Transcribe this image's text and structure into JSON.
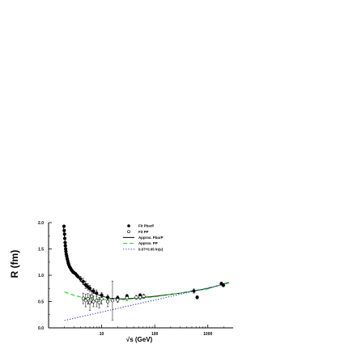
{
  "chart_data": {
    "type": "scatter",
    "title": "",
    "xlabel": "√s  (GeV)",
    "ylabel": "R (fm)",
    "x_scale": "log",
    "xlim": [
      1,
      3000
    ],
    "ylim": [
      0.0,
      2.0
    ],
    "x_ticks": [
      {
        "v": 10,
        "label": "10"
      },
      {
        "v": 100,
        "label": "100"
      },
      {
        "v": 1000,
        "label": "1000"
      }
    ],
    "y_ticks": [
      {
        "v": 0.0,
        "label": "0.0"
      },
      {
        "v": 0.5,
        "label": "0.5"
      },
      {
        "v": 1.0,
        "label": "1.0"
      },
      {
        "v": 1.5,
        "label": "1.5"
      },
      {
        "v": 2.0,
        "label": "2.0"
      }
    ],
    "grid": false,
    "legend_position": "top-right",
    "series": [
      {
        "name": "Fit PbarP",
        "kind": "points",
        "marker": "filled-circle",
        "color": "#000000",
        "points": [
          {
            "x": 1.95,
            "y": 1.93,
            "err": 0
          },
          {
            "x": 1.97,
            "y": 1.85,
            "err": 0
          },
          {
            "x": 2.0,
            "y": 1.78,
            "err": 0
          },
          {
            "x": 2.02,
            "y": 1.7,
            "err": 0
          },
          {
            "x": 2.05,
            "y": 1.62,
            "err": 0
          },
          {
            "x": 2.07,
            "y": 1.56,
            "err": 0
          },
          {
            "x": 2.1,
            "y": 1.5,
            "err": 0
          },
          {
            "x": 2.12,
            "y": 1.45,
            "err": 0
          },
          {
            "x": 2.15,
            "y": 1.4,
            "err": 0
          },
          {
            "x": 2.2,
            "y": 1.36,
            "err": 0
          },
          {
            "x": 2.25,
            "y": 1.31,
            "err": 0
          },
          {
            "x": 2.3,
            "y": 1.27,
            "err": 0
          },
          {
            "x": 2.35,
            "y": 1.23,
            "err": 0
          },
          {
            "x": 2.4,
            "y": 1.2,
            "err": 0
          },
          {
            "x": 2.5,
            "y": 1.16,
            "err": 0
          },
          {
            "x": 2.6,
            "y": 1.13,
            "err": 0
          },
          {
            "x": 2.7,
            "y": 1.1,
            "err": 0
          },
          {
            "x": 2.8,
            "y": 1.08,
            "err": 0
          },
          {
            "x": 2.9,
            "y": 1.06,
            "err": 0
          },
          {
            "x": 3.0,
            "y": 1.05,
            "err": 0
          },
          {
            "x": 3.2,
            "y": 1.03,
            "err": 0
          },
          {
            "x": 3.4,
            "y": 1.0,
            "err": 0
          },
          {
            "x": 3.6,
            "y": 0.97,
            "err": 0
          },
          {
            "x": 4.0,
            "y": 0.93,
            "err": 0.05
          },
          {
            "x": 4.5,
            "y": 0.88,
            "err": 0.06
          },
          {
            "x": 5.0,
            "y": 0.82,
            "err": 0.07
          },
          {
            "x": 5.5,
            "y": 0.78,
            "err": 0.06
          },
          {
            "x": 6.0,
            "y": 0.75,
            "err": 0.06
          },
          {
            "x": 7.0,
            "y": 0.7,
            "err": 0.05
          },
          {
            "x": 8.0,
            "y": 0.66,
            "err": 0.06
          },
          {
            "x": 10.0,
            "y": 0.62,
            "err": 0.05
          },
          {
            "x": 13.0,
            "y": 0.58,
            "err": 0.05
          },
          {
            "x": 20.0,
            "y": 0.57,
            "err": 0.04
          },
          {
            "x": 30.0,
            "y": 0.6,
            "err": 0.04
          },
          {
            "x": 53.0,
            "y": 0.62,
            "err": 0.03
          },
          {
            "x": 546.0,
            "y": 0.7,
            "err": 0.04
          },
          {
            "x": 630.0,
            "y": 0.58,
            "err": 0.03
          },
          {
            "x": 1800.0,
            "y": 0.84,
            "err": 0.03
          },
          {
            "x": 1960.0,
            "y": 0.81,
            "err": 0.03
          }
        ]
      },
      {
        "name": "Fit PP",
        "kind": "points",
        "marker": "open-circle",
        "color": "#000000",
        "points": [
          {
            "x": 4.5,
            "y": 0.56,
            "err": 0.1
          },
          {
            "x": 5.0,
            "y": 0.52,
            "err": 0.12
          },
          {
            "x": 5.5,
            "y": 0.55,
            "err": 0.1
          },
          {
            "x": 6.0,
            "y": 0.48,
            "err": 0.15
          },
          {
            "x": 6.5,
            "y": 0.6,
            "err": 0.12
          },
          {
            "x": 7.0,
            "y": 0.5,
            "err": 0.1
          },
          {
            "x": 8.0,
            "y": 0.52,
            "err": 0.12
          },
          {
            "x": 9.0,
            "y": 0.48,
            "err": 0.1
          },
          {
            "x": 10.0,
            "y": 0.55,
            "err": 0.1
          },
          {
            "x": 13.0,
            "y": 0.5,
            "err": 0.1
          },
          {
            "x": 16.0,
            "y": 0.52,
            "err": 0.37
          },
          {
            "x": 20.0,
            "y": 0.53,
            "err": 0.05
          },
          {
            "x": 30.0,
            "y": 0.57,
            "err": 0.05
          },
          {
            "x": 45.0,
            "y": 0.58,
            "err": 0.04
          },
          {
            "x": 53.0,
            "y": 0.58,
            "err": 0.04
          },
          {
            "x": 62.0,
            "y": 0.6,
            "err": 0.04
          }
        ]
      },
      {
        "name": "Approx. PbarP",
        "kind": "line",
        "dash": "solid",
        "color": "#000000",
        "points": [
          {
            "x": 1.9,
            "y": 1.9
          },
          {
            "x": 2.2,
            "y": 1.4
          },
          {
            "x": 2.6,
            "y": 1.15
          },
          {
            "x": 3.2,
            "y": 1.02
          },
          {
            "x": 4.0,
            "y": 0.9
          },
          {
            "x": 5.0,
            "y": 0.78
          },
          {
            "x": 7.0,
            "y": 0.67
          },
          {
            "x": 10.0,
            "y": 0.6
          },
          {
            "x": 15.0,
            "y": 0.56
          },
          {
            "x": 25.0,
            "y": 0.55
          },
          {
            "x": 50.0,
            "y": 0.57
          },
          {
            "x": 100.0,
            "y": 0.6
          },
          {
            "x": 300.0,
            "y": 0.66
          },
          {
            "x": 1000.0,
            "y": 0.75
          },
          {
            "x": 2500.0,
            "y": 0.86
          }
        ]
      },
      {
        "name": "Approx. PP",
        "kind": "line",
        "dash": "dashed",
        "color": "#22cc22",
        "points": [
          {
            "x": 2.0,
            "y": 0.68
          },
          {
            "x": 3.0,
            "y": 0.62
          },
          {
            "x": 5.0,
            "y": 0.56
          },
          {
            "x": 10.0,
            "y": 0.54
          },
          {
            "x": 20.0,
            "y": 0.53
          },
          {
            "x": 50.0,
            "y": 0.56
          },
          {
            "x": 100.0,
            "y": 0.59
          },
          {
            "x": 300.0,
            "y": 0.66
          },
          {
            "x": 1000.0,
            "y": 0.74
          },
          {
            "x": 2500.0,
            "y": 0.87
          }
        ]
      },
      {
        "name": "0.07+0.05 ln(s)",
        "kind": "line",
        "dash": "dotted",
        "color": "#2233cc",
        "points": [
          {
            "x": 2.0,
            "y": 0.14
          },
          {
            "x": 2500.0,
            "y": 0.85
          }
        ]
      }
    ]
  }
}
